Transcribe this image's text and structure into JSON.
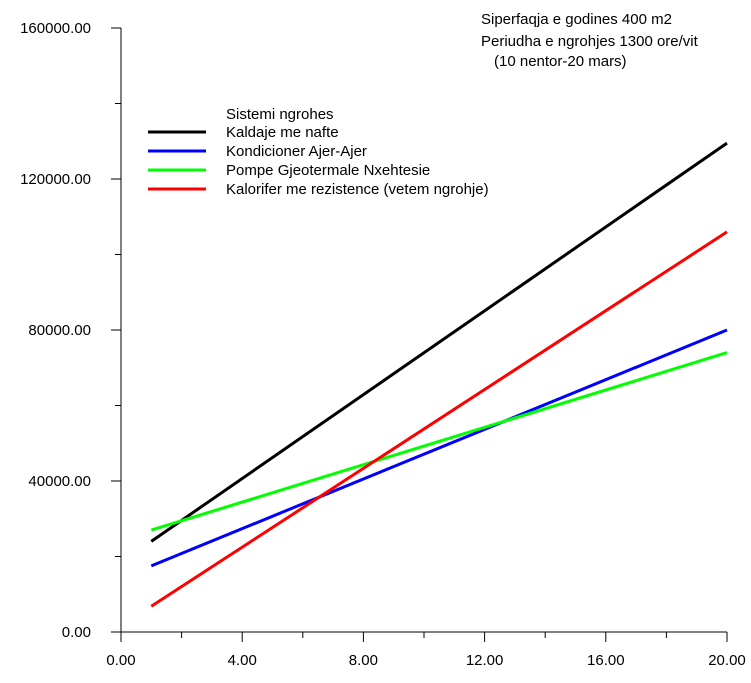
{
  "notes": [
    "Siperfaqja e godines 400 m2",
    "Periudha e ngrohjes 1300 ore/vit",
    "(10 nentor-20 mars)"
  ],
  "chart_data": {
    "type": "line",
    "title": "",
    "xlabel": "",
    "ylabel": "",
    "xlim": [
      0,
      20
    ],
    "ylim": [
      0,
      160000
    ],
    "x_ticks": [
      0,
      4,
      8,
      12,
      16,
      20
    ],
    "x_tick_labels": [
      "0.00",
      "4.00",
      "8.00",
      "12.00",
      "16.00",
      "20.00"
    ],
    "y_ticks": [
      0,
      40000,
      80000,
      120000,
      160000
    ],
    "y_tick_labels": [
      "0.00",
      "40000.00",
      "80000.00",
      "120000.00",
      "160000.00"
    ],
    "x_minor_step": 2,
    "y_minor_step": 20000,
    "grid": false,
    "legend": {
      "title": "Sistemi ngrohes",
      "placement": "top-left"
    },
    "series": [
      {
        "name": "Kaldaje me nafte",
        "color": "#000000",
        "x": [
          1,
          20
        ],
        "y": [
          24000,
          129500
        ]
      },
      {
        "name": "Kondicioner Ajer-Ajer",
        "color": "#0000ff",
        "x": [
          1,
          20
        ],
        "y": [
          17500,
          80000
        ]
      },
      {
        "name": "Pompe Gjeotermale Nxehtesie",
        "color": "#00ff00",
        "x": [
          1,
          20
        ],
        "y": [
          27000,
          74000
        ]
      },
      {
        "name": "Kalorifer me rezistence (vetem ngrohje)",
        "color": "#ff0000",
        "x": [
          1,
          20
        ],
        "y": [
          6800,
          106000
        ]
      }
    ]
  }
}
